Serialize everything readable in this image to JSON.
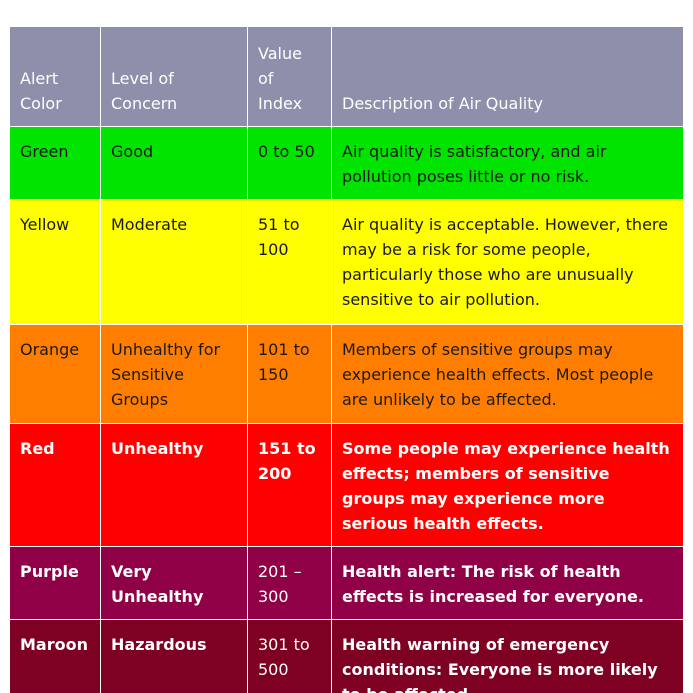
{
  "table": {
    "headers": {
      "alert_color": "Alert Color",
      "level_of_concern": "Level of Concern",
      "value_of_index": "Value of Index",
      "description": "Description of Air Quality"
    },
    "header_color": "#8e90ab",
    "rows": [
      {
        "color_name": "Green",
        "concern": "Good",
        "index": "0 to 50",
        "description": "Air quality is satisfactory, and air pollution poses little or no risk.",
        "bg": "#00e400"
      },
      {
        "color_name": "Yellow",
        "concern": "Moderate",
        "index": "51 to 100",
        "description": "Air quality is acceptable. However, there may be a risk for some people, particularly those who are unusually sensitive to air pollution.",
        "bg": "#ffff00"
      },
      {
        "color_name": "Orange",
        "concern": "Unhealthy for Sensitive Groups",
        "index": "101 to 150",
        "description": "Members of sensitive groups may experience health effects. Most people are unlikely to be affected.",
        "bg": "#ff7e00"
      },
      {
        "color_name": "Red",
        "concern": "Unhealthy",
        "index": "151 to 200",
        "description": "Some people may experience health effects; members of sensitive groups may experience more serious health effects.",
        "bg": "#ff0000"
      },
      {
        "color_name": "Purple",
        "concern": "Very Unhealthy",
        "index": "201 – 300",
        "description": "Health alert: The risk of health effects is increased for everyone.",
        "bg": "#8f0046"
      },
      {
        "color_name": "Maroon",
        "concern": "Hazardous",
        "index": "301 to 500",
        "description": "Health warning of emergency conditions: Everyone is more likely to be affected.",
        "bg": "#7e0023"
      }
    ]
  }
}
